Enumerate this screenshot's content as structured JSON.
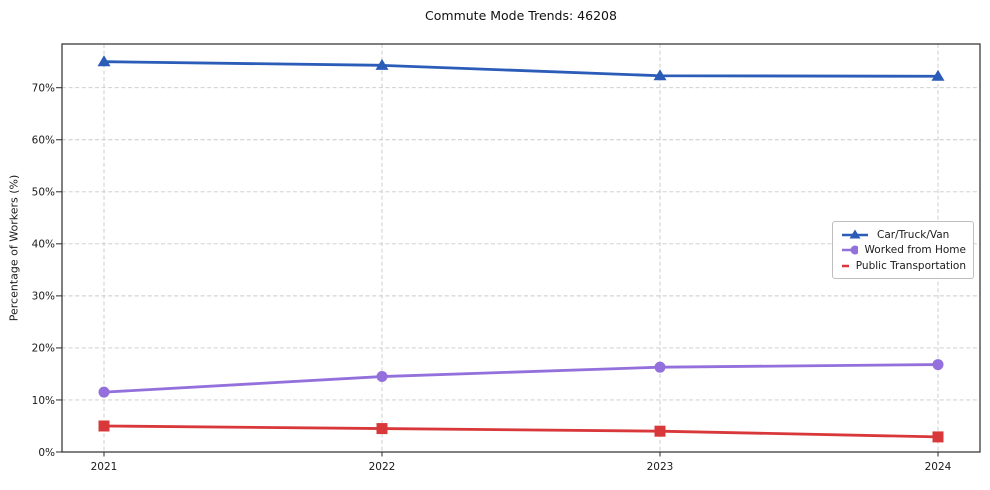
{
  "title": "Commute Mode Trends: 46208",
  "style": {
    "background": "#ffffff",
    "grid_color": "#c9c9c9",
    "axis_color": "#2b2b2b",
    "text_color": "#1a1a1a",
    "legend_border_color": "#bfbfbf"
  },
  "chart_data": {
    "type": "line",
    "title": "Commute Mode Trends: 46208",
    "xlabel": "",
    "ylabel": "Percentage of Workers (%)",
    "x_labels": [
      "2021",
      "2022",
      "2023",
      "2024"
    ],
    "yticks": [
      0,
      10,
      20,
      30,
      40,
      50,
      60,
      70
    ],
    "ytick_suffix": "%",
    "ylim": [
      0,
      78.4
    ],
    "grid": "dashed",
    "legend_position": "center-right",
    "series": [
      {
        "name": "Car/Truck/Van",
        "marker": "triangle",
        "color": "#2b5cb8",
        "values": [
          75.0,
          74.3,
          72.3,
          72.2
        ]
      },
      {
        "name": "Worked from Home",
        "marker": "circle",
        "color": "#9370db",
        "values": [
          11.5,
          14.5,
          16.3,
          16.8
        ]
      },
      {
        "name": "Public Transportation",
        "marker": "square",
        "color": "#d9383b",
        "values": [
          5.0,
          4.5,
          4.0,
          2.9
        ]
      }
    ]
  }
}
